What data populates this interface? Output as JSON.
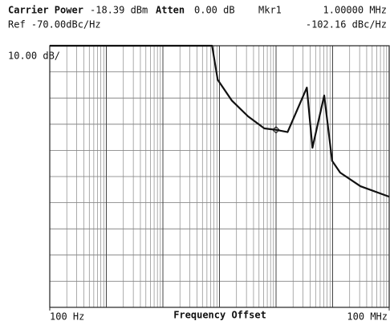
{
  "chart_data": {
    "type": "line",
    "header": {
      "carrier_label": "Carrier Power",
      "carrier_value": "-18.39 dBm",
      "atten_label": "Atten",
      "atten_value": "0.00 dB",
      "ref": "Ref -70.00dBc/Hz",
      "scale": "10.00 dB/"
    },
    "marker": {
      "name": "Mkr1",
      "x": {
        "value": 1000000,
        "label": "1.00000 MHz"
      },
      "y": {
        "value": -102.16,
        "label": "-102.16 dBc/Hz"
      }
    },
    "xlabel": "Frequency Offset",
    "log_x": true,
    "grid": true,
    "xlim": [
      100,
      100000000
    ],
    "ylim": [
      -170,
      -70
    ],
    "xticks": [
      {
        "value": 100,
        "label": "100 Hz"
      },
      {
        "value": 100000000,
        "label": "100 MHz"
      }
    ],
    "series": [
      {
        "color": "#111111",
        "x": [
          100,
          74000,
          93000,
          166000,
          320000,
          620000,
          1000000,
          1600000,
          3500000,
          4400000,
          7100000,
          9800000,
          13600000,
          31000000,
          100000000
        ],
        "values": [
          -70,
          -70,
          -83,
          -91,
          -97,
          -101.6,
          -102.16,
          -103,
          -86,
          -109,
          -89,
          -114,
          -118.5,
          -123.7,
          -127.7
        ]
      }
    ]
  }
}
